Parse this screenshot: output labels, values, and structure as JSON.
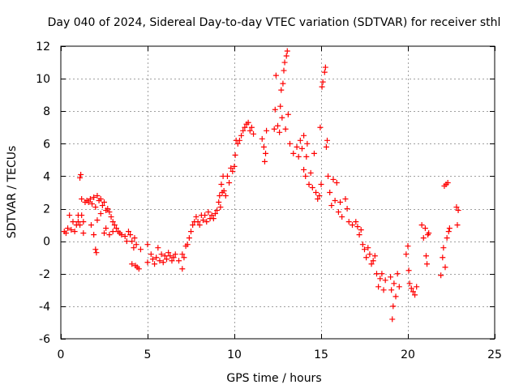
{
  "chart_data": {
    "type": "scatter",
    "title": "Day 040 of 2024, Sidereal Day-to-day VTEC variation (SDTVAR) for receiver sthl",
    "xlabel": "GPS time / hours",
    "ylabel": "SDTVAR / TECUs",
    "xlim": [
      0,
      25
    ],
    "ylim": [
      -6,
      12
    ],
    "x_ticks": [
      0,
      5,
      10,
      15,
      20,
      25
    ],
    "y_ticks": [
      -6,
      -4,
      -2,
      0,
      2,
      4,
      6,
      8,
      10,
      12
    ],
    "x_tick_labels": [
      "0",
      "5",
      "10",
      "15",
      "20",
      "25"
    ],
    "y_tick_labels": [
      "-6",
      "-4",
      "-2",
      "0",
      "2",
      "4",
      "6",
      "8",
      "10",
      "12"
    ],
    "grid": true,
    "marker": "+",
    "series": [
      {
        "name": "sthl",
        "color": "#ff0000",
        "points": [
          [
            0.2,
            0.6
          ],
          [
            0.3,
            0.5
          ],
          [
            0.4,
            0.8
          ],
          [
            0.5,
            1.6
          ],
          [
            0.6,
            0.7
          ],
          [
            0.7,
            1.2
          ],
          [
            0.8,
            0.6
          ],
          [
            0.9,
            1.0
          ],
          [
            1.0,
            1.2
          ],
          [
            1.0,
            1.6
          ],
          [
            1.1,
            1.0
          ],
          [
            1.1,
            3.9
          ],
          [
            1.15,
            4.1
          ],
          [
            1.2,
            2.6
          ],
          [
            1.2,
            1.6
          ],
          [
            1.3,
            0.5
          ],
          [
            1.3,
            1.2
          ],
          [
            1.4,
            2.4
          ],
          [
            1.5,
            2.5
          ],
          [
            1.6,
            2.4
          ],
          [
            1.7,
            2.6
          ],
          [
            1.75,
            1.0
          ],
          [
            1.8,
            2.3
          ],
          [
            1.9,
            2.7
          ],
          [
            1.9,
            0.4
          ],
          [
            2.0,
            -0.5
          ],
          [
            2.05,
            -0.7
          ],
          [
            2.0,
            2.1
          ],
          [
            2.1,
            2.8
          ],
          [
            2.1,
            1.3
          ],
          [
            2.2,
            2.5
          ],
          [
            2.3,
            2.6
          ],
          [
            2.3,
            1.7
          ],
          [
            2.4,
            2.2
          ],
          [
            2.5,
            0.5
          ],
          [
            2.5,
            2.4
          ],
          [
            2.6,
            0.8
          ],
          [
            2.6,
            1.9
          ],
          [
            2.7,
            2.0
          ],
          [
            2.8,
            1.8
          ],
          [
            2.8,
            0.4
          ],
          [
            2.9,
            1.5
          ],
          [
            3.0,
            1.2
          ],
          [
            3.0,
            0.6
          ],
          [
            3.1,
            1.0
          ],
          [
            3.2,
            0.8
          ],
          [
            3.3,
            0.6
          ],
          [
            3.4,
            0.5
          ],
          [
            3.5,
            0.4
          ],
          [
            3.7,
            0.3
          ],
          [
            3.8,
            0.0
          ],
          [
            3.9,
            0.6
          ],
          [
            4.0,
            0.4
          ],
          [
            4.1,
            0.0
          ],
          [
            4.2,
            -0.4
          ],
          [
            4.1,
            -1.4
          ],
          [
            4.25,
            0.2
          ],
          [
            4.3,
            -1.5
          ],
          [
            4.35,
            -0.2
          ],
          [
            4.4,
            -1.6
          ],
          [
            4.5,
            -1.7
          ],
          [
            4.6,
            -0.5
          ],
          [
            5.0,
            -1.3
          ],
          [
            5.0,
            -0.2
          ],
          [
            5.2,
            -0.8
          ],
          [
            5.3,
            -1.1
          ],
          [
            5.4,
            -1.4
          ],
          [
            5.5,
            -1.0
          ],
          [
            5.6,
            -0.4
          ],
          [
            5.7,
            -1.2
          ],
          [
            5.8,
            -0.8
          ],
          [
            5.9,
            -1.3
          ],
          [
            6.0,
            -0.9
          ],
          [
            6.1,
            -1.1
          ],
          [
            6.2,
            -0.7
          ],
          [
            6.3,
            -0.9
          ],
          [
            6.4,
            -1.2
          ],
          [
            6.5,
            -1.0
          ],
          [
            6.6,
            -0.8
          ],
          [
            6.8,
            -1.2
          ],
          [
            7.0,
            -1.7
          ],
          [
            7.0,
            -0.8
          ],
          [
            7.1,
            -1.0
          ],
          [
            7.2,
            -0.3
          ],
          [
            7.3,
            -0.2
          ],
          [
            7.4,
            0.2
          ],
          [
            7.5,
            0.6
          ],
          [
            7.6,
            1.0
          ],
          [
            7.7,
            1.2
          ],
          [
            7.8,
            1.5
          ],
          [
            7.9,
            1.2
          ],
          [
            8.0,
            1.0
          ],
          [
            8.1,
            1.6
          ],
          [
            8.2,
            1.3
          ],
          [
            8.3,
            1.6
          ],
          [
            8.4,
            1.2
          ],
          [
            8.5,
            1.8
          ],
          [
            8.6,
            1.4
          ],
          [
            8.7,
            1.6
          ],
          [
            8.8,
            1.4
          ],
          [
            8.9,
            1.7
          ],
          [
            9.0,
            1.9
          ],
          [
            9.1,
            2.4
          ],
          [
            9.15,
            2.8
          ],
          [
            9.2,
            2.1
          ],
          [
            9.25,
            3.5
          ],
          [
            9.3,
            3.0
          ],
          [
            9.35,
            4.0
          ],
          [
            9.4,
            3.1
          ],
          [
            9.5,
            2.8
          ],
          [
            9.6,
            4.0
          ],
          [
            9.7,
            3.6
          ],
          [
            9.8,
            4.5
          ],
          [
            9.9,
            4.3
          ],
          [
            10.0,
            4.6
          ],
          [
            10.05,
            5.3
          ],
          [
            10.1,
            6.2
          ],
          [
            10.2,
            6.0
          ],
          [
            10.3,
            6.2
          ],
          [
            10.4,
            6.5
          ],
          [
            10.5,
            6.8
          ],
          [
            10.6,
            7.0
          ],
          [
            10.7,
            7.2
          ],
          [
            10.8,
            7.3
          ],
          [
            10.9,
            6.8
          ],
          [
            11.0,
            7.0
          ],
          [
            11.1,
            6.6
          ],
          [
            11.6,
            6.3
          ],
          [
            11.7,
            5.8
          ],
          [
            11.75,
            4.9
          ],
          [
            11.8,
            5.4
          ],
          [
            11.85,
            6.8
          ],
          [
            12.3,
            6.9
          ],
          [
            12.35,
            8.1
          ],
          [
            12.4,
            10.2
          ],
          [
            12.5,
            7.1
          ],
          [
            12.6,
            6.7
          ],
          [
            12.65,
            8.3
          ],
          [
            12.7,
            9.3
          ],
          [
            12.75,
            7.6
          ],
          [
            12.8,
            9.7
          ],
          [
            12.85,
            10.5
          ],
          [
            12.9,
            11.0
          ],
          [
            12.95,
            6.9
          ],
          [
            13.0,
            11.4
          ],
          [
            13.05,
            11.7
          ],
          [
            13.1,
            7.8
          ],
          [
            13.2,
            6.0
          ],
          [
            13.4,
            5.4
          ],
          [
            13.6,
            5.8
          ],
          [
            13.7,
            5.2
          ],
          [
            13.8,
            6.2
          ],
          [
            13.9,
            5.7
          ],
          [
            14.0,
            6.5
          ],
          [
            14.0,
            4.4
          ],
          [
            14.1,
            4.0
          ],
          [
            14.15,
            5.2
          ],
          [
            14.2,
            6.0
          ],
          [
            14.3,
            3.5
          ],
          [
            14.4,
            4.2
          ],
          [
            14.5,
            3.3
          ],
          [
            14.6,
            5.4
          ],
          [
            14.7,
            3.0
          ],
          [
            14.8,
            2.6
          ],
          [
            14.9,
            2.8
          ],
          [
            14.95,
            7.0
          ],
          [
            15.0,
            3.5
          ],
          [
            15.05,
            9.5
          ],
          [
            15.1,
            9.8
          ],
          [
            15.2,
            10.4
          ],
          [
            15.25,
            10.7
          ],
          [
            15.3,
            5.8
          ],
          [
            15.35,
            6.2
          ],
          [
            15.4,
            4.0
          ],
          [
            15.5,
            3.0
          ],
          [
            15.6,
            2.2
          ],
          [
            15.7,
            3.8
          ],
          [
            15.8,
            2.5
          ],
          [
            15.9,
            3.6
          ],
          [
            16.0,
            1.8
          ],
          [
            16.1,
            2.4
          ],
          [
            16.2,
            1.5
          ],
          [
            16.4,
            2.6
          ],
          [
            16.5,
            2.0
          ],
          [
            16.6,
            1.2
          ],
          [
            16.8,
            1.0
          ],
          [
            17.0,
            1.2
          ],
          [
            17.1,
            0.9
          ],
          [
            17.2,
            0.4
          ],
          [
            17.3,
            0.7
          ],
          [
            17.4,
            -0.2
          ],
          [
            17.5,
            -0.5
          ],
          [
            17.6,
            -1.0
          ],
          [
            17.7,
            -0.4
          ],
          [
            17.8,
            -0.8
          ],
          [
            17.9,
            -1.4
          ],
          [
            18.0,
            -1.2
          ],
          [
            18.1,
            -0.9
          ],
          [
            18.2,
            -2.0
          ],
          [
            18.3,
            -2.8
          ],
          [
            18.4,
            -2.3
          ],
          [
            18.5,
            -2.0
          ],
          [
            18.6,
            -3.0
          ],
          [
            18.7,
            -2.4
          ],
          [
            19.0,
            -2.2
          ],
          [
            19.05,
            -3.0
          ],
          [
            19.1,
            -4.8
          ],
          [
            19.15,
            -4.0
          ],
          [
            19.2,
            -2.6
          ],
          [
            19.3,
            -3.4
          ],
          [
            19.4,
            -2.0
          ],
          [
            19.5,
            -2.8
          ],
          [
            19.9,
            -0.8
          ],
          [
            20.0,
            -0.3
          ],
          [
            20.05,
            -1.8
          ],
          [
            20.1,
            -2.6
          ],
          [
            20.2,
            -2.9
          ],
          [
            20.3,
            -3.1
          ],
          [
            20.4,
            -3.3
          ],
          [
            20.5,
            -2.8
          ],
          [
            20.8,
            1.0
          ],
          [
            20.9,
            0.2
          ],
          [
            21.0,
            0.8
          ],
          [
            21.05,
            -0.9
          ],
          [
            21.1,
            -1.4
          ],
          [
            21.15,
            0.4
          ],
          [
            21.2,
            0.5
          ],
          [
            21.9,
            -2.1
          ],
          [
            22.0,
            -1.0
          ],
          [
            22.05,
            -0.4
          ],
          [
            22.1,
            3.4
          ],
          [
            22.15,
            -1.6
          ],
          [
            22.2,
            3.5
          ],
          [
            22.25,
            0.2
          ],
          [
            22.3,
            3.6
          ],
          [
            22.35,
            0.6
          ],
          [
            22.4,
            0.8
          ],
          [
            22.8,
            2.1
          ],
          [
            22.85,
            1.0
          ],
          [
            22.9,
            1.9
          ]
        ]
      }
    ]
  }
}
